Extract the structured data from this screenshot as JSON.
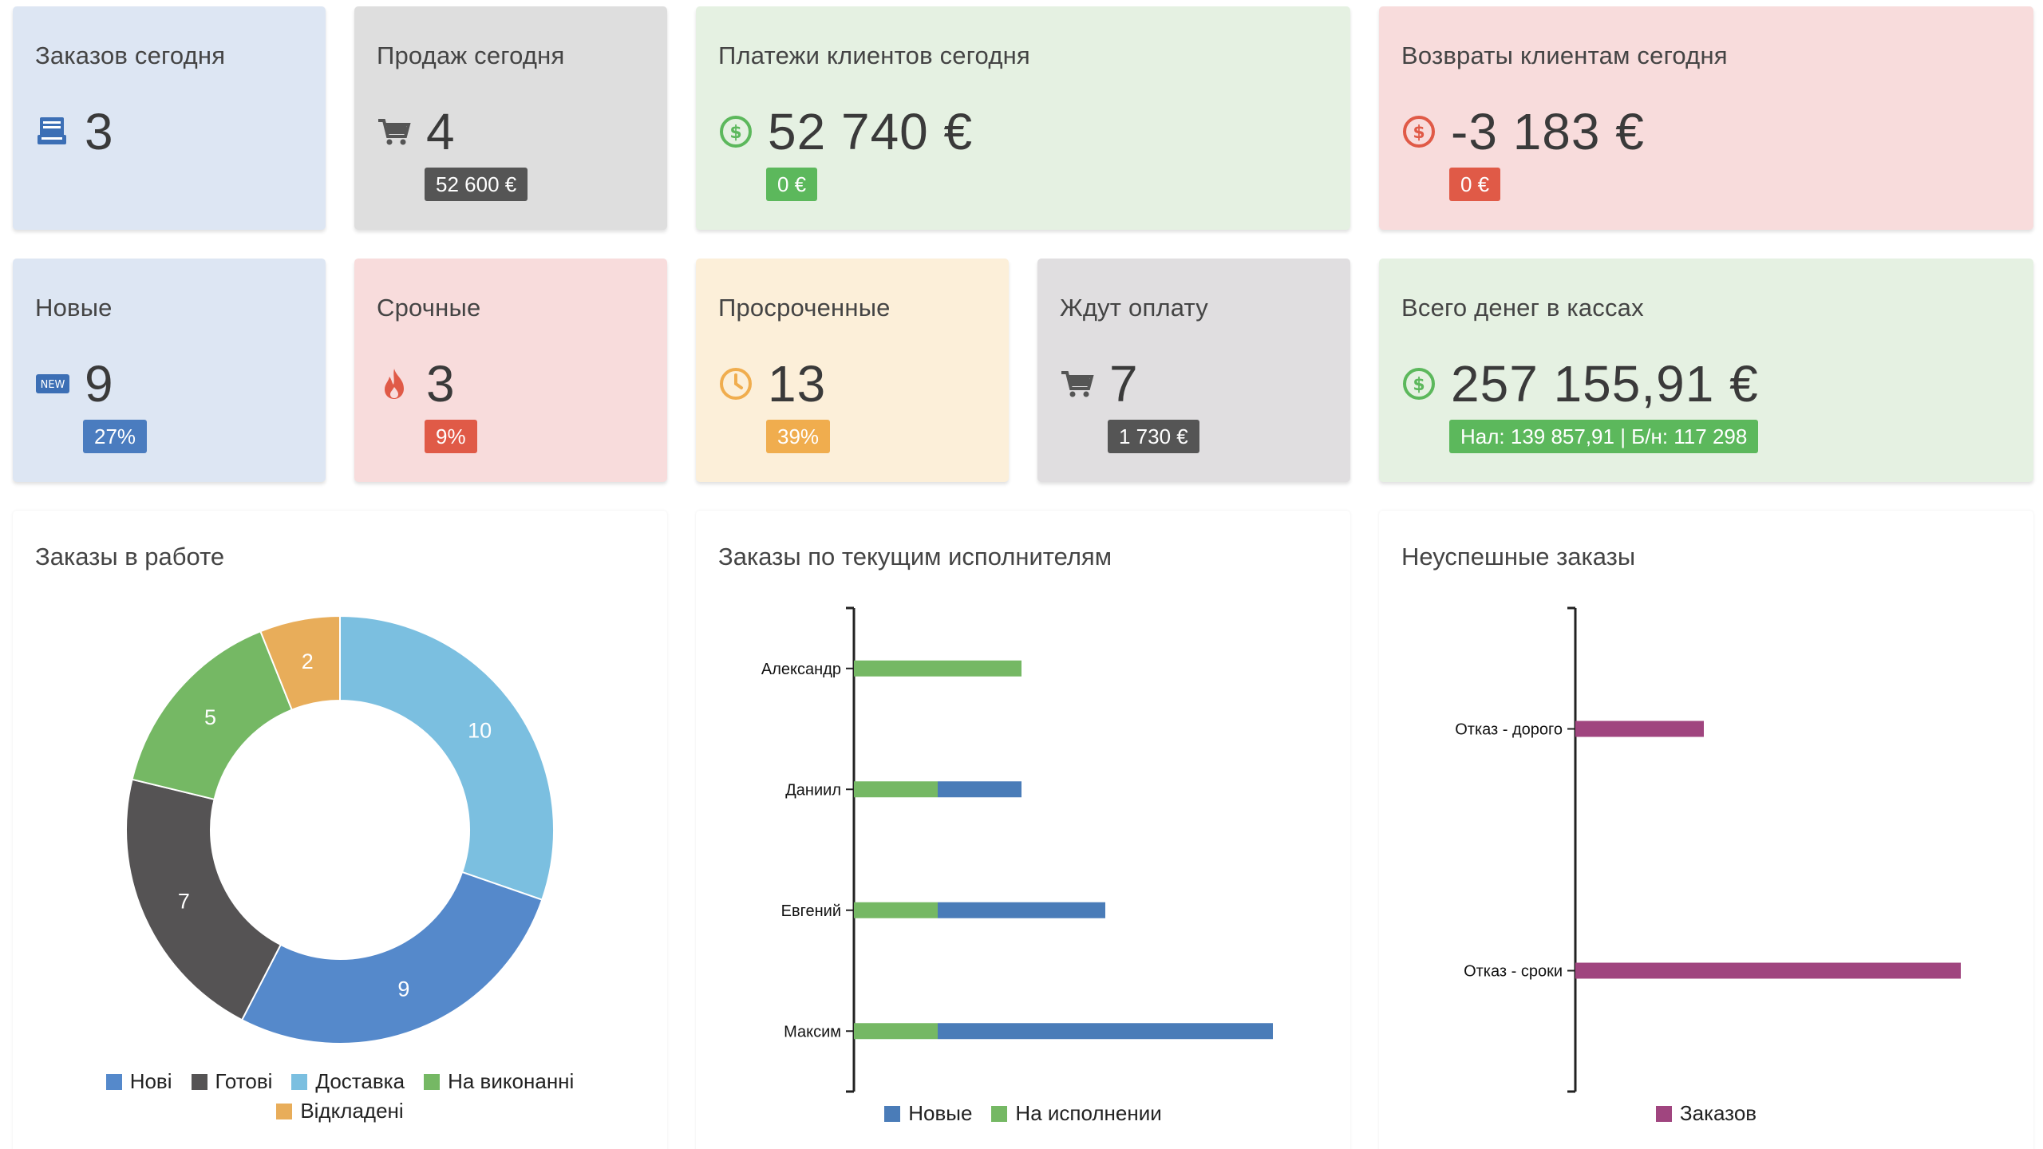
{
  "cards_row1": [
    {
      "title": "Заказов сегодня",
      "value": "3",
      "icon": "inbox-icon"
    },
    {
      "title": "Продаж сегодня",
      "value": "4",
      "icon": "cart-icon",
      "badge": "52 600 €"
    },
    {
      "title": "Платежи клиентов сегодня",
      "value": "52 740 €",
      "icon": "dollar-circle-icon",
      "badge": "0 €"
    },
    {
      "title": "Возвраты клиентам сегодня",
      "value": "-3 183 €",
      "icon": "dollar-circle-icon",
      "badge": "0 €"
    }
  ],
  "cards_row2": [
    {
      "title": "Новые",
      "value": "9",
      "icon": "new-tag-icon",
      "icon_text": "NEW",
      "badge": "27%"
    },
    {
      "title": "Срочные",
      "value": "3",
      "icon": "fire-icon",
      "badge": "9%"
    },
    {
      "title": "Просроченные",
      "value": "13",
      "icon": "clock-icon",
      "badge": "39%"
    },
    {
      "title": "Ждут оплату",
      "value": "7",
      "icon": "cart-icon",
      "badge": "1 730 €"
    },
    {
      "title": "Всего денег в кассах",
      "value": "257 155,91 €",
      "icon": "dollar-circle-icon",
      "badge": "Нал: 139 857,91 | Б/н: 117 298"
    }
  ],
  "colors": {
    "blue_badge": "#4a7cbf",
    "dark_badge": "#555555",
    "green_badge": "#5cb85c",
    "red_badge": "#e05a47",
    "orange_badge": "#f0ad4e",
    "green_icon": "#5cb85c",
    "red_icon": "#e05a47",
    "orange_icon": "#f0ad4e",
    "blue_icon": "#3c6fb5",
    "gray_icon": "#555555"
  },
  "panels": {
    "donut_title": "Заказы в работе",
    "hbar_title": "Заказы по текущим исполнителям",
    "failed_title": "Неуспешные заказы"
  },
  "chart_data": [
    {
      "type": "pie",
      "title": "Заказы в работе",
      "categories": [
        "Нові",
        "Готові",
        "Доставка",
        "На виконанні",
        "Відкладені"
      ],
      "values": [
        9,
        7,
        10,
        5,
        2
      ],
      "colors": [
        "#5589cb",
        "#555354",
        "#7bbfe0",
        "#75b864",
        "#e8ad5a"
      ]
    },
    {
      "type": "bar",
      "orientation": "horizontal",
      "stacked": true,
      "title": "Заказы по текущим исполнителям",
      "categories": [
        "Александр",
        "Даниил",
        "Евгений",
        "Максим"
      ],
      "series": [
        {
          "name": "На исполнении",
          "values": [
            2,
            1,
            1,
            1
          ],
          "color": "#75b864"
        },
        {
          "name": "Новые",
          "values": [
            0,
            1,
            2,
            4
          ],
          "color": "#4a7cb8"
        }
      ],
      "legend": [
        "Новые",
        "На исполнении"
      ]
    },
    {
      "type": "bar",
      "orientation": "horizontal",
      "title": "Неуспешные заказы",
      "categories": [
        "Отказ - дорого",
        "Отказ - сроки"
      ],
      "series": [
        {
          "name": "Заказов",
          "values": [
            1,
            3
          ],
          "color": "#a0457f"
        }
      ]
    }
  ]
}
